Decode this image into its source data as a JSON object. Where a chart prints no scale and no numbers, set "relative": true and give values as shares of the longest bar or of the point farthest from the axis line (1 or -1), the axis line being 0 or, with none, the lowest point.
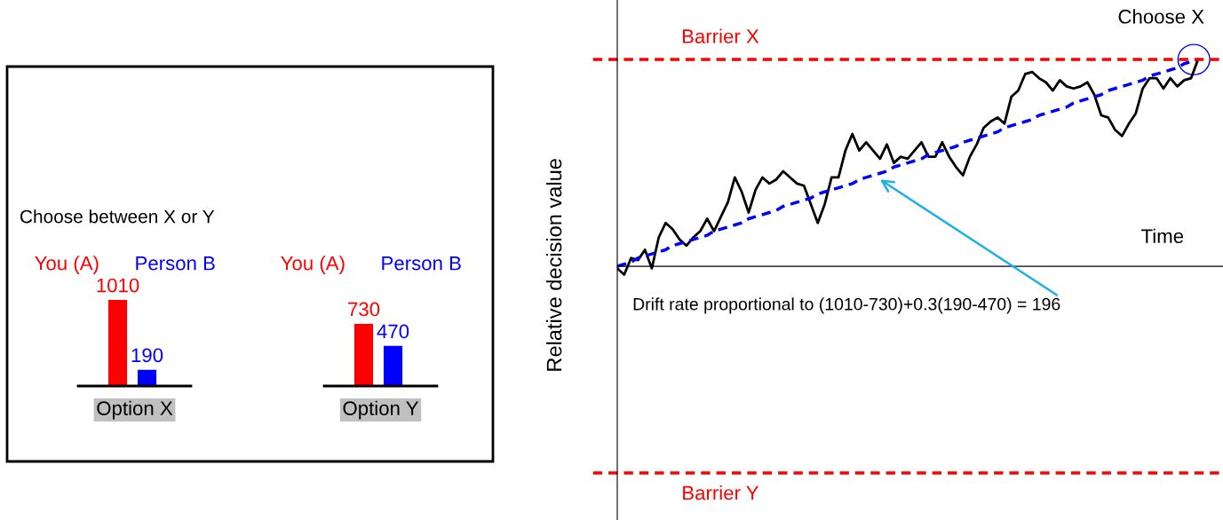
{
  "chart_data": [
    {
      "type": "bar",
      "title": "Choose between X or Y",
      "categories": [
        "You (A)",
        "Person B"
      ],
      "values": [
        1010,
        190
      ],
      "colors": [
        "#ff0000",
        "#0000ff"
      ],
      "data_labels": true,
      "xlabel": "Option X",
      "tick_labels": "x"
    },
    {
      "type": "bar",
      "categories": [
        "You (A)",
        "Person B"
      ],
      "values": [
        730,
        470
      ],
      "colors": [
        "#ff0000",
        "#0000ff"
      ],
      "data_labels": true,
      "xlabel": "Option Y",
      "tick_labels": "x"
    },
    {
      "type": "line",
      "relative": true,
      "tick_labels": false,
      "xlabel": "Time",
      "ylabel": "Relative decision value",
      "categories": [
        null,
        null,
        null,
        null,
        null,
        null,
        null,
        null,
        null,
        null,
        null,
        null,
        null,
        null,
        null,
        null,
        null,
        null,
        null,
        null,
        null,
        null,
        null,
        null,
        null,
        null,
        null,
        null,
        null,
        null,
        null,
        null,
        null,
        null,
        null,
        null,
        null,
        null,
        null,
        null,
        null,
        null,
        null,
        null,
        null,
        null,
        null,
        null,
        null,
        null,
        null,
        null,
        null,
        null,
        null,
        null,
        null,
        null,
        null,
        null,
        null,
        null,
        null,
        null,
        null,
        null,
        null,
        null,
        null,
        null,
        null,
        null,
        null,
        null,
        null,
        null,
        null,
        null,
        null,
        null,
        null,
        null,
        null,
        null,
        null
      ],
      "series": [
        {
          "color": "#000000",
          "line_style": "solid",
          "values": [
            -0.01,
            -0.04,
            0.04,
            0.03,
            0.08,
            -0.01,
            0.14,
            0.21,
            0.18,
            0.13,
            0.1,
            0.14,
            0.17,
            0.23,
            0.17,
            0.24,
            0.31,
            0.43,
            0.36,
            0.26,
            0.37,
            0.43,
            0.4,
            0.42,
            0.46,
            0.43,
            0.4,
            0.39,
            0.3,
            0.21,
            0.3,
            0.43,
            0.43,
            0.56,
            0.64,
            0.56,
            0.6,
            0.56,
            0.52,
            0.59,
            0.5,
            0.53,
            0.52,
            0.56,
            0.6,
            0.53,
            0.53,
            0.6,
            0.53,
            0.48,
            0.44,
            0.53,
            0.59,
            0.67,
            0.7,
            0.72,
            0.69,
            0.82,
            0.85,
            0.93,
            0.94,
            0.91,
            0.89,
            0.85,
            0.9,
            0.87,
            0.86,
            0.87,
            0.89,
            0.83,
            0.73,
            0.72,
            0.66,
            0.63,
            0.69,
            0.74,
            0.86,
            0.91,
            0.91,
            0.86,
            0.91,
            0.87,
            0.9,
            0.91,
            1.0
          ]
        },
        {
          "color": "#0000ff",
          "line_style": "dashed",
          "values": [
            0,
            0.01,
            0.02,
            0.04,
            0.05,
            0.06,
            0.07,
            0.08,
            0.1,
            0.11,
            0.12,
            0.13,
            0.14,
            0.15,
            0.17,
            0.18,
            0.19,
            0.2,
            0.21,
            0.23,
            0.24,
            0.25,
            0.26,
            0.27,
            0.29,
            0.3,
            0.31,
            0.32,
            0.33,
            0.35,
            0.36,
            0.37,
            0.38,
            0.39,
            0.4,
            0.42,
            0.43,
            0.44,
            0.45,
            0.46,
            0.48,
            0.49,
            0.5,
            0.51,
            0.52,
            0.54,
            0.55,
            0.56,
            0.57,
            0.58,
            0.6,
            0.61,
            0.62,
            0.63,
            0.64,
            0.65,
            0.67,
            0.68,
            0.69,
            0.7,
            0.71,
            0.73,
            0.74,
            0.75,
            0.76,
            0.77,
            0.79,
            0.8,
            0.81,
            0.82,
            0.83,
            0.85,
            0.86,
            0.87,
            0.88,
            0.89,
            0.9,
            0.92,
            0.93,
            0.94,
            0.95,
            0.96,
            0.98,
            0.99,
            1.0
          ]
        }
      ],
      "ref_lines": [
        {
          "axis": "y",
          "value": 1,
          "label": "Barrier X",
          "color": "#ff0000",
          "line_style": "dashed"
        },
        {
          "axis": "y",
          "value": -1,
          "label": "Barrier Y",
          "color": "#ff0000",
          "line_style": "dashed"
        }
      ],
      "annotations": [
        "Choose X",
        "Drift rate proportional to (1010-730)+0.3(190-470) = 196"
      ]
    }
  ]
}
